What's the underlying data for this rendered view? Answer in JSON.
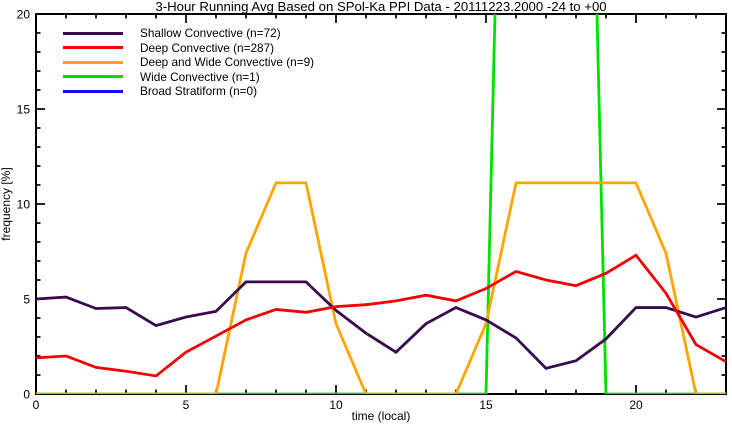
{
  "title": "3-Hour Running Avg Based on SPol-Ka PPI Data - 20111223.2000 -24 to +00",
  "axes": {
    "xlabel": "time (local)",
    "ylabel": "frequency [%]",
    "x_tick_labels": [
      "0",
      "5",
      "10",
      "15",
      "20"
    ],
    "y_tick_labels": [
      "0",
      "5",
      "10",
      "15",
      "20"
    ]
  },
  "legend": {
    "items": [
      {
        "id": "shallow-convective",
        "label": "Shallow Convective (n=72)",
        "n": 72,
        "color": "#390A4D"
      },
      {
        "id": "deep-convective",
        "label": "Deep Convective (n=287)",
        "n": 287,
        "color": "#F50000"
      },
      {
        "id": "deep-and-wide-convective",
        "label": "Deep and Wide Convective (n=9)",
        "n": 9,
        "color": "#FFA500"
      },
      {
        "id": "wide-convective",
        "label": "Wide Convective (n=1)",
        "n": 1,
        "color": "#00E000"
      },
      {
        "id": "broad-stratiform",
        "label": "Broad Stratiform (n=0)",
        "n": 0,
        "color": "#1010EE"
      }
    ]
  },
  "chart_data": {
    "type": "line",
    "title": "3-Hour Running Avg Based on SPol-Ka PPI Data - 20111223.2000 -24 to +00",
    "xlabel": "time (local)",
    "ylabel": "frequency [%]",
    "xlim": [
      0,
      23
    ],
    "ylim": [
      0,
      20
    ],
    "x_major_ticks": [
      0,
      5,
      10,
      15,
      20
    ],
    "y_major_ticks": [
      0,
      5,
      10,
      15,
      20
    ],
    "x_minor_step": 1,
    "y_minor_step": 1,
    "grid": false,
    "legend_position": "top-left-inside",
    "x": [
      0,
      1,
      2,
      3,
      4,
      5,
      6,
      7,
      8,
      9,
      10,
      11,
      12,
      13,
      14,
      15,
      16,
      17,
      18,
      19,
      20,
      21,
      22,
      23
    ],
    "series": [
      {
        "id": "shallow-convective",
        "name": "Shallow Convective (n=72)",
        "color": "#390A4D",
        "values": [
          5.0,
          5.1,
          4.5,
          4.55,
          3.6,
          4.05,
          4.35,
          5.9,
          5.9,
          5.9,
          4.4,
          3.2,
          2.2,
          3.7,
          4.55,
          3.9,
          2.95,
          1.35,
          1.75,
          2.9,
          4.55,
          4.55,
          4.05,
          4.55
        ]
      },
      {
        "id": "deep-convective",
        "name": "Deep Convective (n=287)",
        "color": "#F50000",
        "values": [
          1.9,
          2.0,
          1.4,
          1.2,
          0.95,
          2.2,
          3.05,
          3.9,
          4.45,
          4.3,
          4.6,
          4.7,
          4.9,
          5.2,
          4.9,
          5.55,
          6.45,
          6.0,
          5.7,
          6.35,
          7.3,
          5.3,
          2.6,
          1.7
        ]
      },
      {
        "id": "deep-and-wide-convective",
        "name": "Deep and Wide Convective (n=9)",
        "color": "#FFA500",
        "values": [
          0,
          0,
          0,
          0,
          0,
          0,
          0,
          7.41,
          11.11,
          11.11,
          3.7,
          0,
          0,
          0,
          0,
          3.7,
          11.11,
          11.11,
          11.11,
          11.11,
          11.11,
          7.41,
          0,
          0
        ]
      },
      {
        "id": "wide-convective",
        "name": "Wide Convective (n=1)",
        "color": "#00E000",
        "values": [
          0,
          0,
          0,
          0,
          0,
          0,
          0,
          0,
          0,
          0,
          0,
          0,
          0,
          0,
          0,
          0,
          66.7,
          100,
          66.7,
          0,
          0,
          0,
          0,
          0
        ],
        "note": "spike clipped at ylim top"
      },
      {
        "id": "broad-stratiform",
        "name": "Broad Stratiform (n=0)",
        "color": "#1010EE",
        "values": [
          0,
          0,
          0,
          0,
          0,
          0,
          0,
          0,
          0,
          0,
          0,
          0,
          0,
          0,
          0,
          0,
          0,
          0,
          0,
          0,
          0,
          0,
          0,
          0
        ],
        "visible": false
      }
    ],
    "draw_order": [
      4,
      3,
      2,
      0,
      1
    ]
  }
}
